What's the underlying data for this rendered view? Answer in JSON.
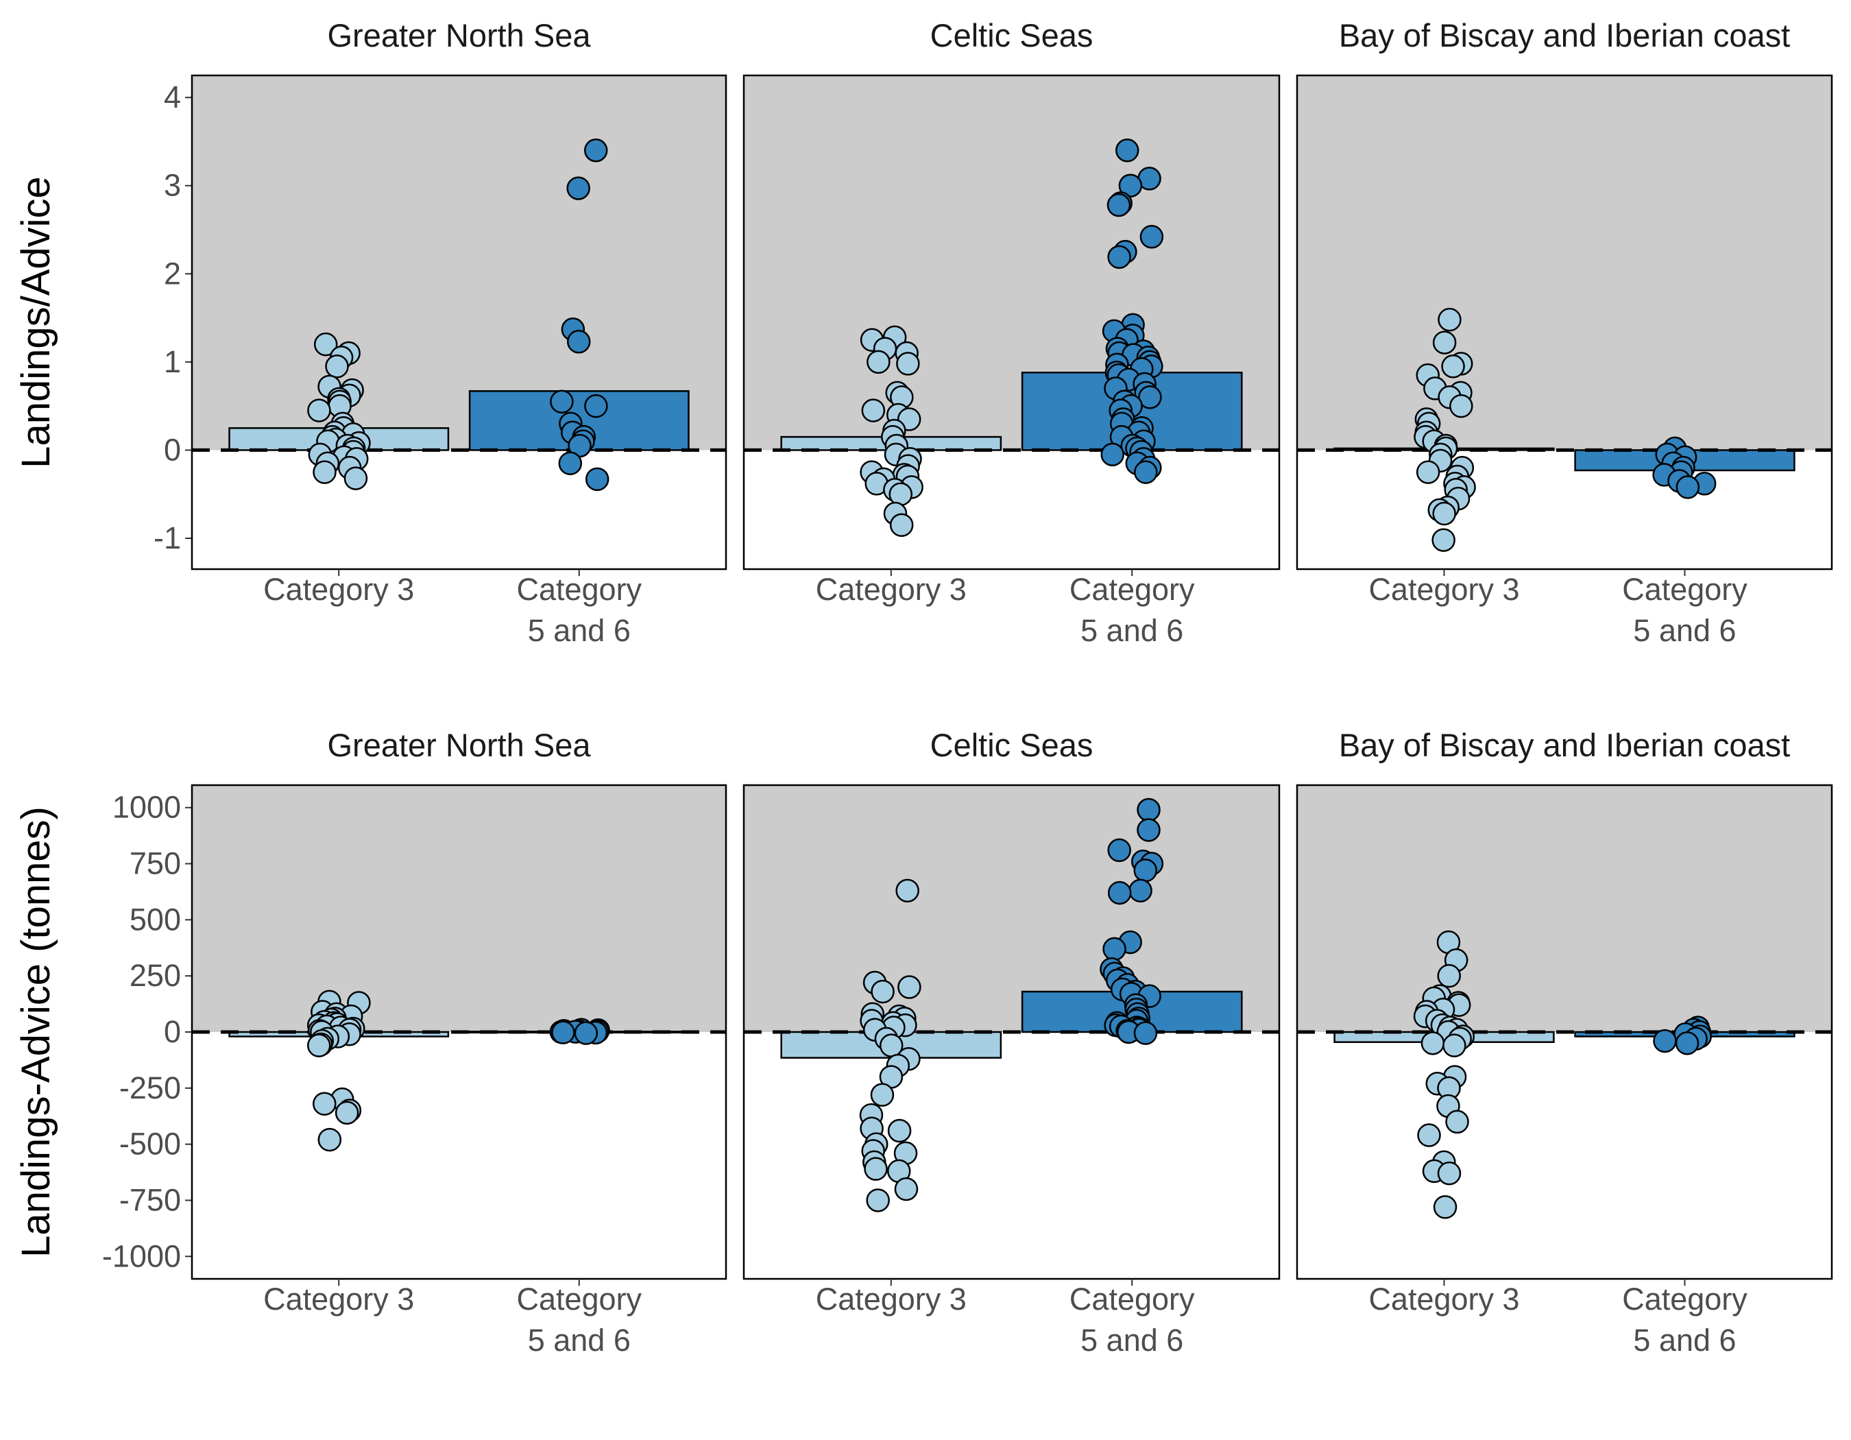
{
  "colors": {
    "positive_region": "#cccccc",
    "category_3": "#a6cee3",
    "category_5_6": "#3182bd",
    "outline": "#000000"
  },
  "chart_data": [
    {
      "type": "bar",
      "ylabel": "Landings/Advice",
      "ylim": [
        -1.35,
        4.25
      ],
      "yticks": [
        -1,
        0,
        1,
        2,
        3,
        4
      ],
      "yticklabels": [
        "-1",
        "0",
        "1",
        "2",
        "3",
        "4"
      ],
      "reference_line": 0,
      "shaded_region": "above 0",
      "categories": [
        "Category 3",
        "Category\n5 and 6"
      ],
      "panels": [
        {
          "title": "Greater North Sea",
          "bars": [
            0.25,
            0.67
          ],
          "points": [
            [
              1.2,
              1.1,
              1.05,
              0.95,
              0.72,
              0.68,
              0.62,
              0.58,
              0.55,
              0.5,
              0.45,
              0.3,
              0.25,
              0.2,
              0.18,
              0.15,
              0.12,
              0.1,
              0.08,
              0.05,
              0.02,
              -0.02,
              -0.05,
              -0.08,
              -0.1,
              -0.15,
              -0.2,
              -0.25,
              -0.32
            ],
            [
              3.4,
              2.97,
              1.37,
              1.23,
              0.55,
              0.5,
              0.3,
              0.2,
              0.15,
              0.1,
              0.05,
              -0.15,
              -0.33
            ]
          ]
        },
        {
          "title": "Celtic Seas",
          "bars": [
            0.15,
            0.88
          ],
          "points": [
            [
              1.28,
              1.25,
              1.15,
              1.1,
              1.0,
              0.98,
              0.65,
              0.6,
              0.45,
              0.4,
              0.35,
              0.22,
              0.15,
              0.05,
              -0.05,
              -0.1,
              -0.18,
              -0.25,
              -0.28,
              -0.3,
              -0.33,
              -0.38,
              -0.42,
              -0.45,
              -0.5,
              -0.72,
              -0.85
            ],
            [
              3.4,
              3.08,
              3.0,
              2.8,
              2.78,
              2.42,
              2.25,
              2.19,
              1.42,
              1.35,
              1.3,
              1.25,
              1.15,
              1.12,
              1.1,
              1.08,
              1.05,
              1.0,
              0.97,
              0.95,
              0.92,
              0.88,
              0.85,
              0.8,
              0.75,
              0.7,
              0.65,
              0.6,
              0.55,
              0.5,
              0.45,
              0.35,
              0.3,
              0.25,
              0.2,
              0.15,
              0.1,
              0.05,
              0.02,
              -0.02,
              -0.05,
              -0.1,
              -0.15,
              -0.2,
              -0.25
            ]
          ]
        },
        {
          "title": "Bay of Biscay and Iberian coast",
          "bars": [
            0.02,
            -0.23
          ],
          "points": [
            [
              1.48,
              1.22,
              0.98,
              0.95,
              0.85,
              0.7,
              0.65,
              0.6,
              0.5,
              0.35,
              0.3,
              0.2,
              0.15,
              0.1,
              0.05,
              0.02,
              -0.05,
              -0.12,
              -0.2,
              -0.25,
              -0.3,
              -0.38,
              -0.42,
              -0.45,
              -0.55,
              -0.65,
              -0.68,
              -0.72,
              -1.02
            ],
            [
              0.02,
              -0.05,
              -0.08,
              -0.15,
              -0.2,
              -0.25,
              -0.28,
              -0.35,
              -0.38,
              -0.42
            ]
          ]
        }
      ]
    },
    {
      "type": "bar",
      "ylabel": "Landings-Advice (tonnes)",
      "ylim": [
        -1100,
        1100
      ],
      "yticks": [
        -1000,
        -750,
        -500,
        -250,
        0,
        250,
        500,
        750,
        1000
      ],
      "yticklabels": [
        "-1000",
        "-750",
        "-500",
        "-250",
        "0",
        "250",
        "500",
        "750",
        "1000"
      ],
      "reference_line": 0,
      "shaded_region": "above 0",
      "categories": [
        "Category 3",
        "Category\n5 and 6"
      ],
      "panels": [
        {
          "title": "Greater North Sea",
          "bars": [
            -20,
            2
          ],
          "points": [
            [
              135,
              130,
              90,
              80,
              70,
              60,
              55,
              45,
              40,
              35,
              30,
              25,
              20,
              15,
              10,
              5,
              0,
              -10,
              -20,
              -30,
              -40,
              -55,
              -60,
              -300,
              -320,
              -350,
              -360,
              -480
            ],
            [
              10,
              8,
              5,
              3,
              2,
              1,
              0,
              -2,
              -3,
              -5
            ]
          ]
        },
        {
          "title": "Celtic Seas",
          "bars": [
            -115,
            180
          ],
          "points": [
            [
              630,
              220,
              200,
              180,
              80,
              70,
              60,
              50,
              40,
              30,
              20,
              10,
              -30,
              -60,
              -120,
              -150,
              -200,
              -280,
              -370,
              -430,
              -440,
              -500,
              -530,
              -540,
              -580,
              -610,
              -620,
              -700,
              -750
            ],
            [
              990,
              900,
              810,
              760,
              750,
              720,
              630,
              620,
              400,
              370,
              280,
              260,
              240,
              230,
              210,
              190,
              180,
              170,
              160,
              120,
              100,
              80,
              60,
              50,
              40,
              30,
              25,
              20,
              15,
              10,
              5,
              0,
              -5
            ]
          ]
        },
        {
          "title": "Bay of Biscay and Iberian coast",
          "bars": [
            -45,
            -20
          ],
          "points": [
            [
              400,
              320,
              250,
              160,
              150,
              130,
              120,
              100,
              90,
              70,
              50,
              30,
              20,
              10,
              0,
              -20,
              -30,
              -50,
              -60,
              -200,
              -230,
              -250,
              -330,
              -400,
              -460,
              -580,
              -620,
              -630,
              -780
            ],
            [
              20,
              10,
              0,
              -10,
              -20,
              -30,
              -40,
              -50
            ]
          ]
        }
      ]
    }
  ]
}
